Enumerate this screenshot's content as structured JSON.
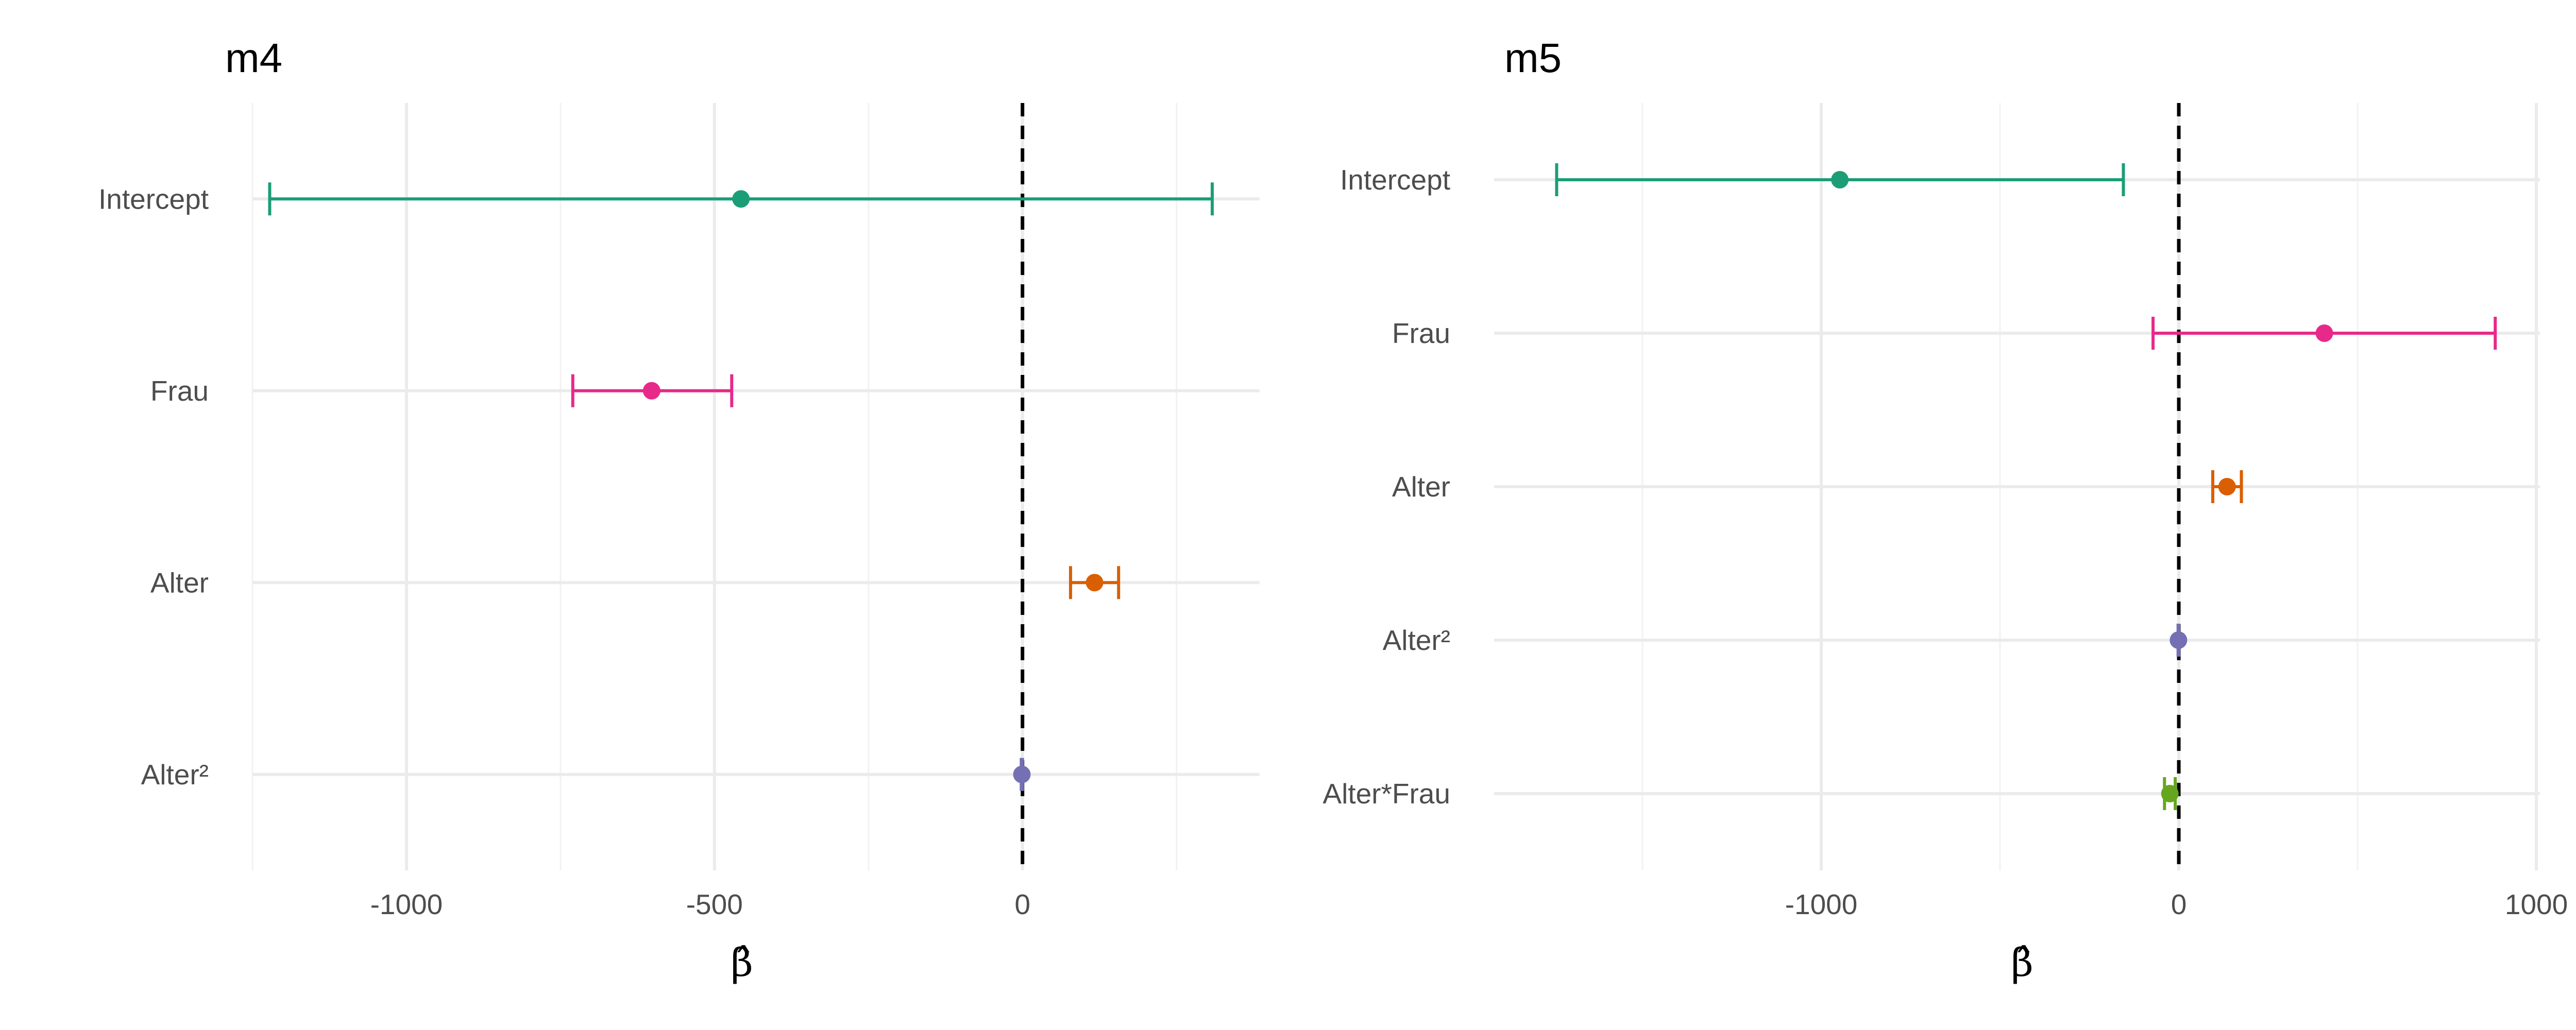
{
  "chart_data": [
    {
      "type": "forest",
      "title": "m4",
      "xlabel": "β̂",
      "ylabel": "",
      "xlim": [
        -1250,
        385
      ],
      "xticks": [
        -1000,
        -500,
        0
      ],
      "xtick_labels": [
        "-1000",
        "-500",
        "0"
      ],
      "reference_line": 0,
      "grid": true,
      "legend": "none",
      "terms": [
        {
          "label": "Intercept",
          "estimate": -457,
          "lower": -1222,
          "upper": 308,
          "color": "#1b9e77"
        },
        {
          "label": "Frau",
          "estimate": -602,
          "lower": -730,
          "upper": -472,
          "color": "#e7298a"
        },
        {
          "label": "Alter",
          "estimate": 117,
          "lower": 78,
          "upper": 156,
          "color": "#d95f02"
        },
        {
          "label": "Alter²",
          "estimate": -1,
          "lower": -2,
          "upper": 0,
          "color": "#7570b3"
        }
      ]
    },
    {
      "type": "forest",
      "title": "m5",
      "xlabel": "β̂",
      "ylabel": "",
      "xlim": [
        -1915,
        1010
      ],
      "xticks": [
        -1000,
        0,
        1000
      ],
      "xtick_labels": [
        "-1000",
        "0",
        "1000"
      ],
      "reference_line": 0,
      "grid": true,
      "legend": "none",
      "terms": [
        {
          "label": "Intercept",
          "estimate": -948,
          "lower": -1740,
          "upper": -155,
          "color": "#1b9e77"
        },
        {
          "label": "Frau",
          "estimate": 407,
          "lower": -72,
          "upper": 885,
          "color": "#e7298a"
        },
        {
          "label": "Alter",
          "estimate": 135,
          "lower": 95,
          "upper": 175,
          "color": "#d95f02"
        },
        {
          "label": "Alter²",
          "estimate": -1,
          "lower": -2,
          "upper": 0,
          "color": "#7570b3"
        },
        {
          "label": "Alter*Frau",
          "estimate": -25,
          "lower": -40,
          "upper": -10,
          "color": "#66a61e"
        }
      ]
    }
  ]
}
